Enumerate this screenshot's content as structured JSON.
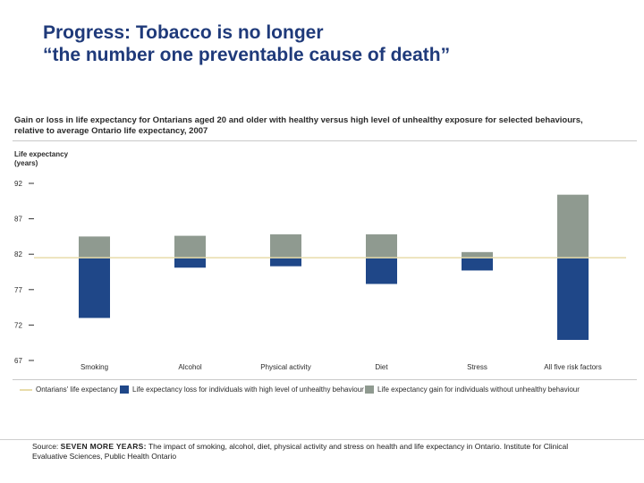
{
  "slide": {
    "title_line1": "Progress: Tobacco is no longer",
    "title_line2": "“the number one preventable cause of death”"
  },
  "chart_data": {
    "type": "bar",
    "title_line1": "Gain or loss in life expectancy for Ontarians aged 20 and older with healthy versus high level of unhealthy exposure for selected behaviours,",
    "title_line2": "relative to average Ontario life expectancy, 2007",
    "ylabel_line1": "Life expectancy",
    "ylabel_line2": "(years)",
    "xlabel": "",
    "baseline": 81.5,
    "ylim": [
      67,
      92
    ],
    "yticks": [
      67,
      72,
      77,
      82,
      87,
      92
    ],
    "categories": [
      "Smoking",
      "Alcohol",
      "Physical activity",
      "Diet",
      "Stress",
      "All five risk factors"
    ],
    "series": [
      {
        "name": "Life expectancy gain for individuals without unhealthy behaviour",
        "color": "#8f9a90",
        "values": [
          84.5,
          84.6,
          84.8,
          84.8,
          82.3,
          90.4
        ]
      },
      {
        "name": "Life expectancy loss for individuals with high level of unhealthy behaviour",
        "color": "#1f4788",
        "values": [
          73.0,
          80.1,
          80.3,
          77.8,
          79.7,
          69.9
        ]
      }
    ],
    "baseline_series_name": "Ontarians' life expectancy",
    "baseline_color": "#e8dcaa",
    "legend_position": "bottom",
    "grid": false
  },
  "source": {
    "prefix": "Source: ",
    "title": "SEVEN MORE YEARS:",
    "text": " The impact of smoking, alcohol, diet, physical activity and stress on health and life expectancy in Ontario. Institute for Clinical Evaluative Sciences, Public Health Ontario"
  }
}
